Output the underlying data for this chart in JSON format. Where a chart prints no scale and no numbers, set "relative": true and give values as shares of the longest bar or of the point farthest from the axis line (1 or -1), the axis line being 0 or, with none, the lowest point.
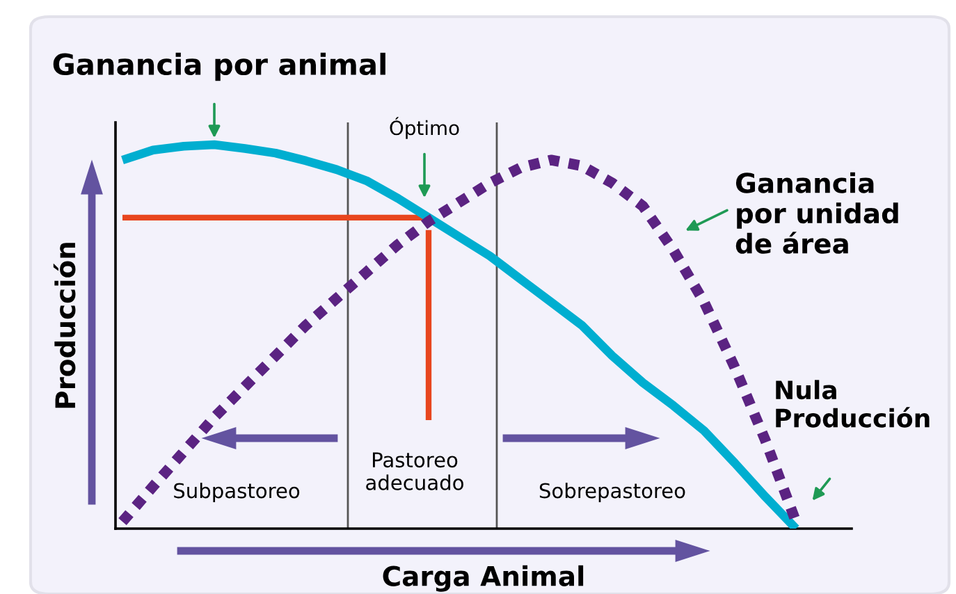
{
  "chart_data": {
    "type": "line",
    "relative": true,
    "xlabel": "Carga Animal",
    "ylabel": "Producción",
    "categories": [
      null,
      null,
      null,
      null,
      null,
      null,
      null,
      null,
      null,
      null,
      null,
      null,
      null,
      null,
      null,
      null,
      null,
      null,
      null,
      null,
      null,
      null,
      null
    ],
    "legend": false,
    "marker": "none",
    "series": [
      {
        "color": "#00aed0",
        "line_style": "solid",
        "values": [
          0.96,
          0.986,
          0.996,
          1,
          0.99,
          0.978,
          0.958,
          0.935,
          0.905,
          0.86,
          0.81,
          0.76,
          0.71,
          0.65,
          0.59,
          0.53,
          0.45,
          0.38,
          0.32,
          0.255,
          0.171,
          0.083,
          0.0
        ]
      },
      {
        "color": "#5b2382",
        "line_style": "dotted",
        "values": [
          0.018,
          0.11,
          0.2,
          0.29,
          0.37,
          0.45,
          0.53,
          0.6,
          0.67,
          0.74,
          0.8,
          0.85,
          0.9,
          0.94,
          0.96,
          0.945,
          0.9,
          0.84,
          0.725,
          0.59,
          0.42,
          0.23,
          0.018
        ]
      },
      {
        "color": "#e8461e",
        "line_style": "solid",
        "values": [
          0.81,
          0.81,
          0.81,
          0.81,
          0.81,
          0.81,
          0.81,
          0.81,
          0.81,
          0.81,
          0.81,
          null,
          null,
          null,
          null,
          null,
          null,
          null,
          null,
          null,
          null,
          null,
          null
        ]
      }
    ],
    "annotations": [
      "Ganancia por animal",
      "Óptimo",
      "Ganancia\npor unidad\nde área",
      "Nula\nProducción",
      "Subpastoreo",
      "Pastoreo\nadecuado",
      "Sobrepastoreo"
    ]
  }
}
